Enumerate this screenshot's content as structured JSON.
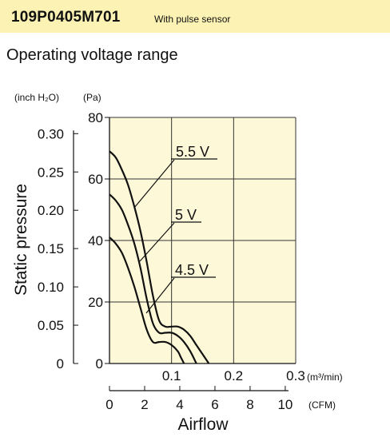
{
  "header": {
    "model": "109P0405M701",
    "note": "With pulse sensor",
    "background": "#fbf2b3"
  },
  "subtitle": "Operating voltage range",
  "chart_data": {
    "type": "line",
    "title": "Operating voltage range",
    "xlabel": "Airflow",
    "ylabel": "Static pressure",
    "x_units": [
      "(m³/min)",
      "(CFM)"
    ],
    "y_units": [
      "(inch H₂O)",
      "(Pa)"
    ],
    "xlim": [
      0,
      0.3
    ],
    "ylim": [
      0,
      80
    ],
    "x_ticks_m3min": [
      "0.1",
      "0.2",
      "0.3"
    ],
    "x_ticks_cfm": [
      "0",
      "2",
      "4",
      "6",
      "8",
      "10"
    ],
    "y_ticks_pa": [
      "0",
      "20",
      "40",
      "60",
      "80"
    ],
    "y_ticks_inh2o": [
      "0",
      "0.05",
      "0.10",
      "0.15",
      "0.20",
      "0.25",
      "0.30"
    ],
    "grid": true,
    "plot_background": "#fdf8d8",
    "series": [
      {
        "name": "5.5 V",
        "x": [
          0,
          0.01,
          0.02,
          0.03,
          0.04,
          0.05,
          0.06,
          0.07,
          0.08,
          0.09,
          0.1,
          0.11,
          0.12,
          0.13,
          0.14,
          0.15,
          0.16
        ],
        "values": [
          69,
          67,
          63,
          58,
          51,
          43,
          33,
          22,
          14,
          12,
          12,
          12,
          11,
          9,
          6,
          3,
          0
        ]
      },
      {
        "name": "5 V",
        "x": [
          0,
          0.01,
          0.02,
          0.03,
          0.04,
          0.05,
          0.06,
          0.07,
          0.08,
          0.09,
          0.1,
          0.11,
          0.12,
          0.13,
          0.14
        ],
        "values": [
          55,
          53,
          50,
          45,
          39,
          31,
          21,
          13,
          10,
          10,
          10,
          9,
          7,
          4,
          0
        ]
      },
      {
        "name": "4.5 V",
        "x": [
          0,
          0.01,
          0.02,
          0.03,
          0.04,
          0.05,
          0.06,
          0.07,
          0.08,
          0.09,
          0.1,
          0.11,
          0.115,
          0.12
        ],
        "values": [
          41,
          39,
          36,
          31,
          25,
          18,
          11,
          7,
          7,
          7,
          6,
          4,
          2,
          0
        ]
      }
    ]
  }
}
